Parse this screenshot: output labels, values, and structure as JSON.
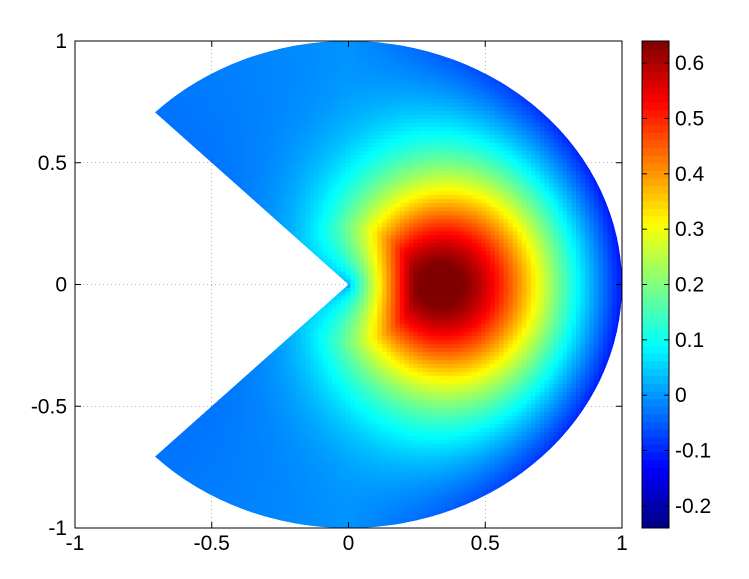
{
  "chart_data": {
    "type": "heatmap",
    "title": "",
    "xlabel": "",
    "ylabel": "",
    "xlim": [
      -1,
      1
    ],
    "ylim": [
      -1,
      1
    ],
    "grid": true,
    "grid_style": "dotted",
    "x_ticks": [
      -1,
      -0.5,
      0,
      0.5,
      1
    ],
    "x_tick_labels": [
      "-1",
      "-0.5",
      "0",
      "0.5",
      "1"
    ],
    "y_ticks": [
      1,
      0.5,
      0,
      -0.5,
      -1
    ],
    "y_tick_labels": [
      "1",
      "0.5",
      "0",
      "-0.5",
      "-1"
    ],
    "domain": {
      "shape": "disk sector (pac-man)",
      "radius": 1,
      "missing_wedge_start_deg": 135,
      "missing_wedge_end_deg": 225
    },
    "field": {
      "peak_value": 0.64,
      "peak_location": [
        0.33,
        0
      ],
      "min_value": -0.22,
      "min_location": "outer boundary near x = 0.9"
    },
    "colormap": "jet",
    "colorbar": {
      "position": "right",
      "range": [
        -0.24,
        0.64
      ],
      "ticks": [
        0.6,
        0.5,
        0.4,
        0.3,
        0.2,
        0.1,
        0,
        -0.1,
        -0.2
      ],
      "tick_labels": [
        "0.6",
        "0.5",
        "0.4",
        "0.3",
        "0.2",
        "0.1",
        "0",
        "-0.1",
        "-0.2"
      ]
    }
  }
}
